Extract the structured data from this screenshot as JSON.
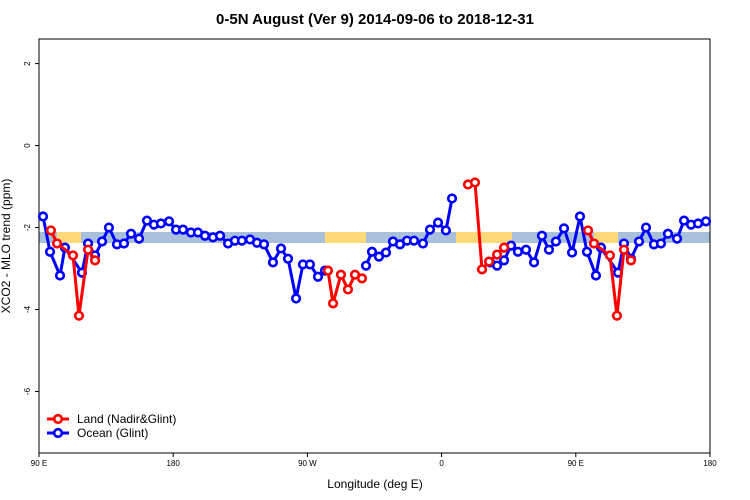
{
  "chart_data": {
    "type": "line",
    "title": "0-5N August (Ver 9)   2014-09-06 to 2018-12-31",
    "x_label": "Longitude (deg E)",
    "y_label": "XCO2 - MLO trend (ppm)",
    "xlim": [
      90,
      540
    ],
    "ylim": [
      -7.5,
      2.6
    ],
    "xticks": [
      {
        "value": 90,
        "label": "90 E"
      },
      180,
      {
        "value": 270,
        "label": "90 W"
      },
      {
        "value": 360,
        "label": "0"
      },
      {
        "value": 450,
        "label": "90 E"
      },
      {
        "value": 540,
        "label": "180"
      }
    ],
    "yticks": [
      2,
      0,
      -2,
      -4,
      -6
    ],
    "legend": "bottom-left",
    "series": [
      {
        "name": "Land (Nadir&Glint)",
        "color": "#ff0000",
        "x": [
          98.0,
          102.1,
          112.8,
          116.8,
          122.9,
          127.6,
          null,
          283.8,
          287.2,
          292.5,
          297.2,
          301.9,
          306.6,
          null,
          377.7,
          382.4,
          387.1,
          391.8,
          397.2,
          401.9,
          null,
          458.2,
          462.2,
          472.9,
          477.6,
          482.3,
          487.0
        ],
        "values": [
          -2.07,
          -2.39,
          -2.68,
          -4.15,
          -2.54,
          -2.8,
          null,
          -3.05,
          -3.85,
          -3.15,
          -3.51,
          -3.15,
          -3.24,
          null,
          -0.95,
          -0.9,
          -3.02,
          -2.83,
          -2.66,
          -2.49,
          null,
          -2.07,
          -2.39,
          -2.68,
          -4.15,
          -2.54,
          -2.8
        ]
      },
      {
        "name": "Ocean (Glint)",
        "color": "#0000ff",
        "x": [
          92.7,
          97.4,
          104.1,
          107.4,
          118.8,
          122.9,
          127.6,
          132.3,
          136.9,
          142.3,
          147.0,
          151.7,
          157.1,
          162.4,
          167.1,
          171.8,
          177.2,
          181.9,
          186.6,
          191.9,
          196.6,
          201.3,
          206.7,
          211.4,
          216.8,
          221.4,
          226.1,
          231.5,
          236.2,
          240.9,
          246.9,
          252.3,
          257.0,
          262.4,
          267.0,
          271.7,
          277.1,
          281.8,
          null,
          309.3,
          313.3,
          318.0,
          322.7,
          327.4,
          332.1,
          336.8,
          341.5,
          347.5,
          352.2,
          357.6,
          362.9,
          367.0,
          null,
          392.5,
          397.2,
          401.9,
          406.6,
          411.2,
          416.6,
          422.0,
          427.3,
          432.0,
          436.7,
          442.1,
          447.5,
          452.8,
          457.5,
          463.5,
          466.9,
          478.3,
          482.3,
          487.0,
          492.4,
          497.1,
          502.4,
          507.1,
          511.8,
          517.9,
          522.6,
          527.3,
          532.0,
          537.3
        ],
        "values": [
          -1.73,
          -2.59,
          -3.17,
          -2.49,
          -3.1,
          -2.39,
          -2.68,
          -2.34,
          -2.0,
          -2.41,
          -2.39,
          -2.15,
          -2.27,
          -1.83,
          -1.93,
          -1.9,
          -1.85,
          -2.05,
          -2.05,
          -2.12,
          -2.12,
          -2.2,
          -2.24,
          -2.2,
          -2.39,
          -2.32,
          -2.32,
          -2.29,
          -2.37,
          -2.41,
          -2.85,
          -2.51,
          -2.76,
          -3.73,
          -2.9,
          -2.9,
          -3.2,
          -3.05,
          null,
          -2.93,
          -2.59,
          -2.71,
          -2.61,
          -2.34,
          -2.41,
          -2.32,
          -2.32,
          -2.39,
          -2.05,
          -1.88,
          -2.07,
          -1.29,
          null,
          -2.85,
          -2.93,
          -2.8,
          -2.44,
          -2.59,
          -2.54,
          -2.85,
          -2.2,
          -2.54,
          -2.34,
          -2.02,
          -2.61,
          -1.73,
          -2.59,
          -3.17,
          -2.49,
          -3.1,
          -2.39,
          -2.76,
          -2.34,
          -2.0,
          -2.41,
          -2.39,
          -2.15,
          -2.27,
          -1.83,
          -1.93,
          -1.9,
          -1.85
        ]
      }
    ]
  }
}
